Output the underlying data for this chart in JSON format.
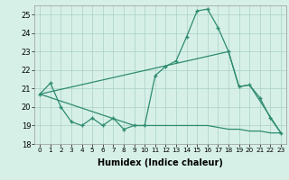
{
  "xlabel": "Humidex (Indice chaleur)",
  "x_main": [
    0,
    1,
    2,
    3,
    4,
    5,
    6,
    7,
    8,
    9,
    10,
    11,
    12,
    13,
    14,
    15,
    16,
    17,
    18,
    19,
    20,
    21,
    22,
    23
  ],
  "y_main": [
    20.7,
    21.3,
    20.0,
    19.2,
    19.0,
    19.4,
    19.0,
    19.4,
    18.8,
    19.0,
    19.0,
    21.7,
    22.2,
    22.5,
    23.8,
    25.2,
    25.3,
    24.3,
    23.0,
    21.1,
    21.2,
    20.5,
    19.4,
    18.6
  ],
  "x_diag": [
    0,
    18,
    19,
    20,
    23
  ],
  "y_diag": [
    20.7,
    23.0,
    21.1,
    21.2,
    18.6
  ],
  "x_flat": [
    0,
    9,
    10,
    11,
    12,
    13,
    14,
    15,
    16,
    17,
    18,
    19,
    20,
    21,
    22,
    23
  ],
  "y_flat": [
    20.7,
    19.0,
    19.0,
    19.0,
    19.0,
    19.0,
    19.0,
    19.0,
    19.0,
    18.9,
    18.8,
    18.8,
    18.7,
    18.7,
    18.6,
    18.6
  ],
  "color": "#2e8b6e",
  "bg_color": "#d6f0e8",
  "grid_color": "#aacfc5",
  "ylim": [
    18,
    25.5
  ],
  "yticks": [
    18,
    19,
    20,
    21,
    22,
    23,
    24,
    25
  ],
  "xticks": [
    0,
    1,
    2,
    3,
    4,
    5,
    6,
    7,
    8,
    9,
    10,
    11,
    12,
    13,
    14,
    15,
    16,
    17,
    18,
    19,
    20,
    21,
    22,
    23
  ]
}
